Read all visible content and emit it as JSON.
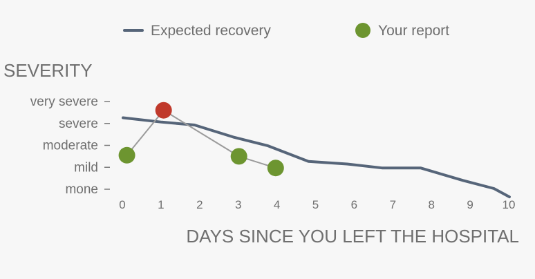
{
  "chart_data": {
    "type": "line",
    "title": "",
    "ylabel": "SEVERITY",
    "xlabel": "DAYS SINCE YOU LEFT THE HOSPITAL",
    "x_ticks": [
      "0",
      "1",
      "2",
      "3",
      "4",
      "5",
      "6",
      "7",
      "8",
      "9",
      "10"
    ],
    "y_categories": [
      "mone",
      "mild",
      "moderate",
      "severe",
      "very severe"
    ],
    "xlim": [
      0,
      10
    ],
    "ylim": [
      0,
      4
    ],
    "legend": {
      "placement": "top",
      "entries": [
        {
          "label": "Expected recovery",
          "marker": "line"
        },
        {
          "label": "Your report",
          "marker": "circle"
        }
      ]
    },
    "series": [
      {
        "name": "Expected recovery",
        "color": "#566579",
        "style": "line",
        "points": [
          [
            0,
            3.26
          ],
          [
            1,
            3.06
          ],
          [
            1.85,
            2.93
          ],
          [
            2.85,
            2.38
          ],
          [
            3.75,
            1.98
          ],
          [
            4.8,
            1.27
          ],
          [
            5.8,
            1.15
          ],
          [
            6.7,
            0.97
          ],
          [
            7.7,
            0.97
          ],
          [
            8.8,
            0.4
          ],
          [
            9.6,
            0.03
          ],
          [
            10,
            -0.35
          ]
        ]
      },
      {
        "name": "Your report",
        "color": "#6d9530",
        "style": "points",
        "connector_color": "#9b9b9b",
        "points": [
          {
            "x": 0.1,
            "y": 1.55,
            "color": "#6d9530"
          },
          {
            "x": 1.05,
            "y": 3.6,
            "color": "#c0392b"
          },
          {
            "x": 3.0,
            "y": 1.5,
            "color": "#6d9530"
          },
          {
            "x": 3.95,
            "y": 0.97,
            "color": "#6d9530"
          }
        ]
      }
    ]
  }
}
